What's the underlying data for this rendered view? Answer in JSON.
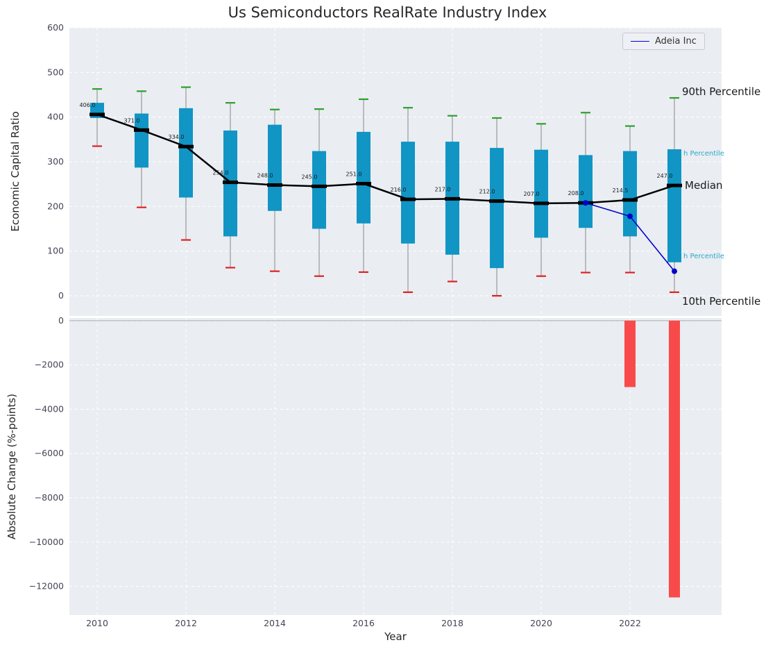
{
  "title": "Us Semiconductors RealRate Industry Index",
  "axes": {
    "top_ylabel": "Economic Capital Ratio",
    "bottom_ylabel": "Absolute Change (%-points)",
    "xlabel": "Year"
  },
  "legend": {
    "label": "Adeia Inc"
  },
  "annotations": {
    "p90": "90th Percentile",
    "p75": "h Percentile",
    "median": "Median",
    "p25": "h Percentile",
    "p10": "10th Percentile"
  },
  "colors": {
    "axes_bg": "#eaedf2",
    "grid": "#ffffff",
    "tick_text": "#444455",
    "box": "#1095c5",
    "p90_cap": "#2ca02c",
    "p10_cap": "#e02020",
    "whisker": "#888888",
    "median_line": "#000000",
    "adeia_line": "#0000cc",
    "bar_negative": "#f84a4a",
    "zero_line": "#aaaaaa",
    "median_label_text": "#1a1a1a"
  },
  "chart_data": [
    {
      "type": "boxplot+line",
      "panel": "top",
      "title": "Us Semiconductors RealRate Industry Index",
      "ylabel": "Economic Capital Ratio",
      "ylim": [
        -45,
        600
      ],
      "yticks": [
        [
          0,
          "0"
        ],
        [
          100,
          "100"
        ],
        [
          200,
          "200"
        ],
        [
          300,
          "300"
        ],
        [
          400,
          "400"
        ],
        [
          500,
          "500"
        ],
        [
          600,
          "600"
        ]
      ],
      "xticks": [
        [
          2010,
          "2010"
        ],
        [
          2012,
          "2012"
        ],
        [
          2014,
          "2014"
        ],
        [
          2016,
          "2016"
        ],
        [
          2018,
          "2018"
        ],
        [
          2020,
          "2020"
        ],
        [
          2022,
          "2022"
        ]
      ],
      "years": [
        2010,
        2011,
        2012,
        2013,
        2014,
        2015,
        2016,
        2017,
        2018,
        2019,
        2020,
        2021,
        2022,
        2023
      ],
      "p10": [
        335,
        198,
        125,
        63,
        55,
        44,
        53,
        8,
        32,
        0,
        44,
        52,
        52,
        8
      ],
      "p25": [
        398,
        287,
        220,
        133,
        190,
        150,
        162,
        117,
        92,
        62,
        130,
        152,
        133,
        75
      ],
      "median": [
        406,
        371,
        334,
        254,
        248,
        245,
        251,
        216,
        217,
        212,
        207,
        208,
        214.5,
        247
      ],
      "p75": [
        432,
        408,
        420,
        370,
        383,
        324,
        367,
        345,
        345,
        331,
        327,
        315,
        324,
        328
      ],
      "p90": [
        463,
        458,
        467,
        432,
        417,
        418,
        440,
        421,
        403,
        398,
        385,
        410,
        380,
        443
      ],
      "median_labels": [
        "406.0",
        "371.0",
        "334.0",
        "254.0",
        "248.0",
        "245.0",
        "251.0",
        "216.0",
        "217.0",
        "212.0",
        "207.0",
        "208.0",
        "214.5",
        "247.0"
      ],
      "series": [
        {
          "name": "Adeia Inc",
          "x": [
            2021,
            2022,
            2023
          ],
          "y": [
            208,
            178,
            55
          ]
        }
      ],
      "legend_position": "upper right",
      "grid": "dashed"
    },
    {
      "type": "bar",
      "panel": "bottom",
      "ylabel": "Absolute Change (%-points)",
      "xlabel": "Year",
      "ylim": [
        -13300,
        120
      ],
      "yticks": [
        [
          0,
          "0"
        ],
        [
          -2000,
          "−2000"
        ],
        [
          -4000,
          "−4000"
        ],
        [
          -6000,
          "−6000"
        ],
        [
          -8000,
          "−8000"
        ],
        [
          -10000,
          "−10000"
        ],
        [
          -12000,
          "−12000"
        ]
      ],
      "bars": [
        {
          "year": 2022,
          "value": -3000
        },
        {
          "year": 2023,
          "value": -12500
        }
      ],
      "grid": "dashed"
    }
  ]
}
